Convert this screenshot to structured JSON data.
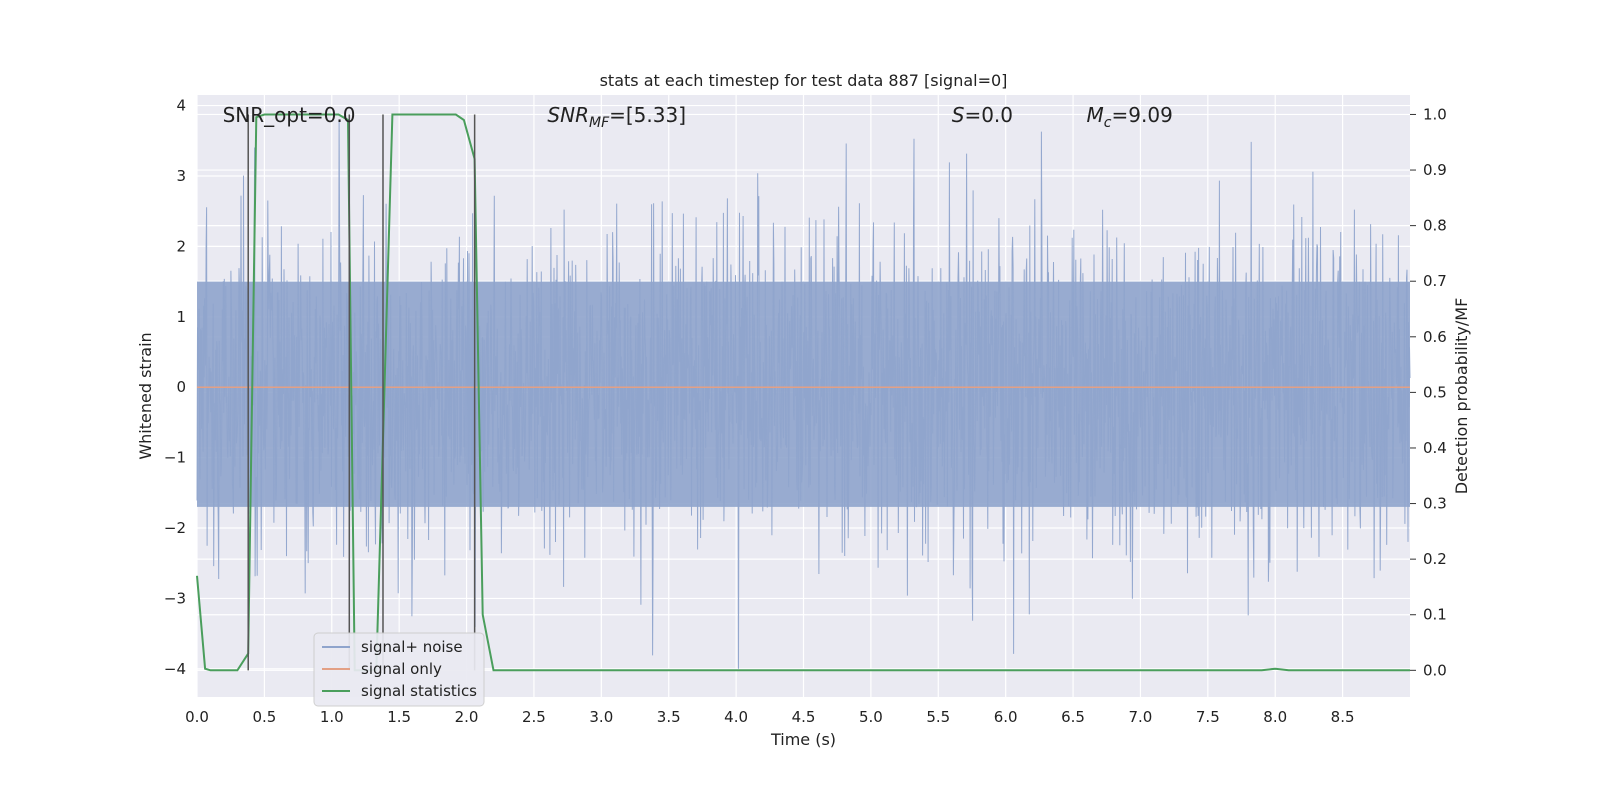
{
  "chart_data": {
    "type": "line",
    "title": "stats at each timestep for test data 887 [signal=0]",
    "xlabel": "Time (s)",
    "ylabel": "Whitened strain",
    "y2label": "Detection probability/MF",
    "xlim": [
      0.0,
      9.0
    ],
    "ylim": [
      -4.4,
      4.15
    ],
    "y2lim": [
      -0.048,
      1.035
    ],
    "xticks": [
      0.0,
      0.5,
      1.0,
      1.5,
      2.0,
      2.5,
      3.0,
      3.5,
      4.0,
      4.5,
      5.0,
      5.5,
      6.0,
      6.5,
      7.0,
      7.5,
      8.0,
      8.5
    ],
    "xtick_labels": [
      "0.0",
      "0.5",
      "1.0",
      "1.5",
      "2.0",
      "2.5",
      "3.0",
      "3.5",
      "4.0",
      "4.5",
      "5.0",
      "5.5",
      "6.0",
      "6.5",
      "7.0",
      "7.5",
      "8.0",
      "8.5"
    ],
    "yticks": [
      4,
      3,
      2,
      1,
      0,
      -1,
      -2,
      -3,
      -4
    ],
    "ytick_labels": [
      "4",
      "3",
      "2",
      "1",
      "0",
      "−1",
      "−2",
      "−3",
      "−4"
    ],
    "y2ticks": [
      1.0,
      0.9,
      0.8,
      0.7,
      0.6,
      0.5,
      0.4,
      0.3,
      0.2,
      0.1,
      0.0
    ],
    "y2tick_labels": [
      "1.0",
      "0.9",
      "0.8",
      "0.7",
      "0.6",
      "0.5",
      "0.4",
      "0.3",
      "0.2",
      "0.1",
      "0.0"
    ],
    "grid": true,
    "legend_position": "lower-left",
    "series": [
      {
        "name": "signal+ noise",
        "axis": "left",
        "color": "#8fa4cc",
        "kind": "noise",
        "envelope_typical": 1.5,
        "peak_max": 3.8,
        "trough_min": -4.0,
        "x_range": [
          0.0,
          9.0
        ]
      },
      {
        "name": "signal only",
        "axis": "left",
        "color": "#e3a085",
        "x": [
          0.0,
          9.0
        ],
        "y": [
          0.0,
          0.0
        ]
      },
      {
        "name": "signal statistics",
        "axis": "right",
        "color": "#4a9e5c",
        "x": [
          0.0,
          0.06,
          0.1,
          0.3,
          0.38,
          0.44,
          0.5,
          1.05,
          1.12,
          1.17,
          1.33,
          1.45,
          1.92,
          1.98,
          2.06,
          2.12,
          2.2,
          7.9,
          8.0,
          8.1,
          9.0
        ],
        "y": [
          0.17,
          0.003,
          0.0,
          0.0,
          0.03,
          0.995,
          1.0,
          1.0,
          0.99,
          0.0,
          0.0,
          1.0,
          1.0,
          0.99,
          0.92,
          0.1,
          0.0,
          0.0,
          0.003,
          0.0,
          0.0
        ]
      }
    ],
    "vlines": [
      0.38,
      1.13,
      1.38,
      2.06
    ],
    "annotations": [
      {
        "text": "SNR_opt=0.0",
        "x": 0.19
      },
      {
        "text": "SNR_MF=[5.33]",
        "x": 2.6,
        "main": "SNR",
        "sub": "MF",
        "tail": "=[5.33]",
        "italic": true
      },
      {
        "text": "S=0.0",
        "x": 5.6,
        "main": "S",
        "tail": "=0.0",
        "italic": true
      },
      {
        "text": "M_c=9.09",
        "x": 6.6,
        "main": "M",
        "sub": "c",
        "tail": "=9.09",
        "italic": true
      }
    ],
    "legend": [
      "signal+ noise",
      "signal only",
      "signal statistics"
    ]
  }
}
